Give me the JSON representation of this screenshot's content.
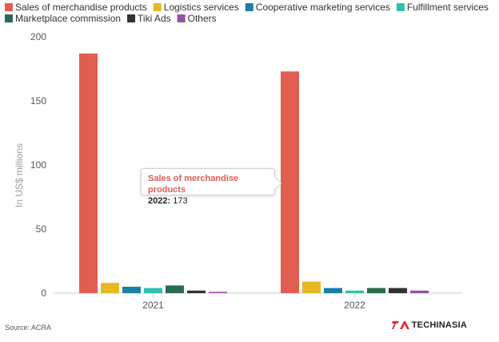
{
  "chart_data": {
    "type": "bar",
    "categories": [
      "2021",
      "2022"
    ],
    "series": [
      {
        "name": "Sales of merchandise products",
        "color": "#e05d52",
        "values": [
          187,
          173
        ]
      },
      {
        "name": "Logistics services",
        "color": "#e8b823",
        "values": [
          8,
          9
        ]
      },
      {
        "name": "Cooperative marketing services",
        "color": "#1a80a8",
        "values": [
          5,
          4
        ]
      },
      {
        "name": "Fulfillment services",
        "color": "#2ec2ae",
        "values": [
          4,
          2
        ]
      },
      {
        "name": "Marketplace commission",
        "color": "#2a6b4e",
        "values": [
          6,
          4
        ]
      },
      {
        "name": "Tiki Ads",
        "color": "#333333",
        "values": [
          2,
          4
        ]
      },
      {
        "name": "Others",
        "color": "#9b4ea8",
        "values": [
          1,
          2
        ]
      }
    ],
    "ylabel": "In US$ millions",
    "ylim": [
      0,
      200
    ],
    "yticks": [
      0,
      50,
      100,
      150,
      200
    ],
    "grid": false,
    "legend": "top-left"
  },
  "tooltip": {
    "series": "Sales of merchandise products",
    "category": "2022",
    "value": "173"
  },
  "source": "Source: ACRA",
  "brand": "TECHINASIA"
}
